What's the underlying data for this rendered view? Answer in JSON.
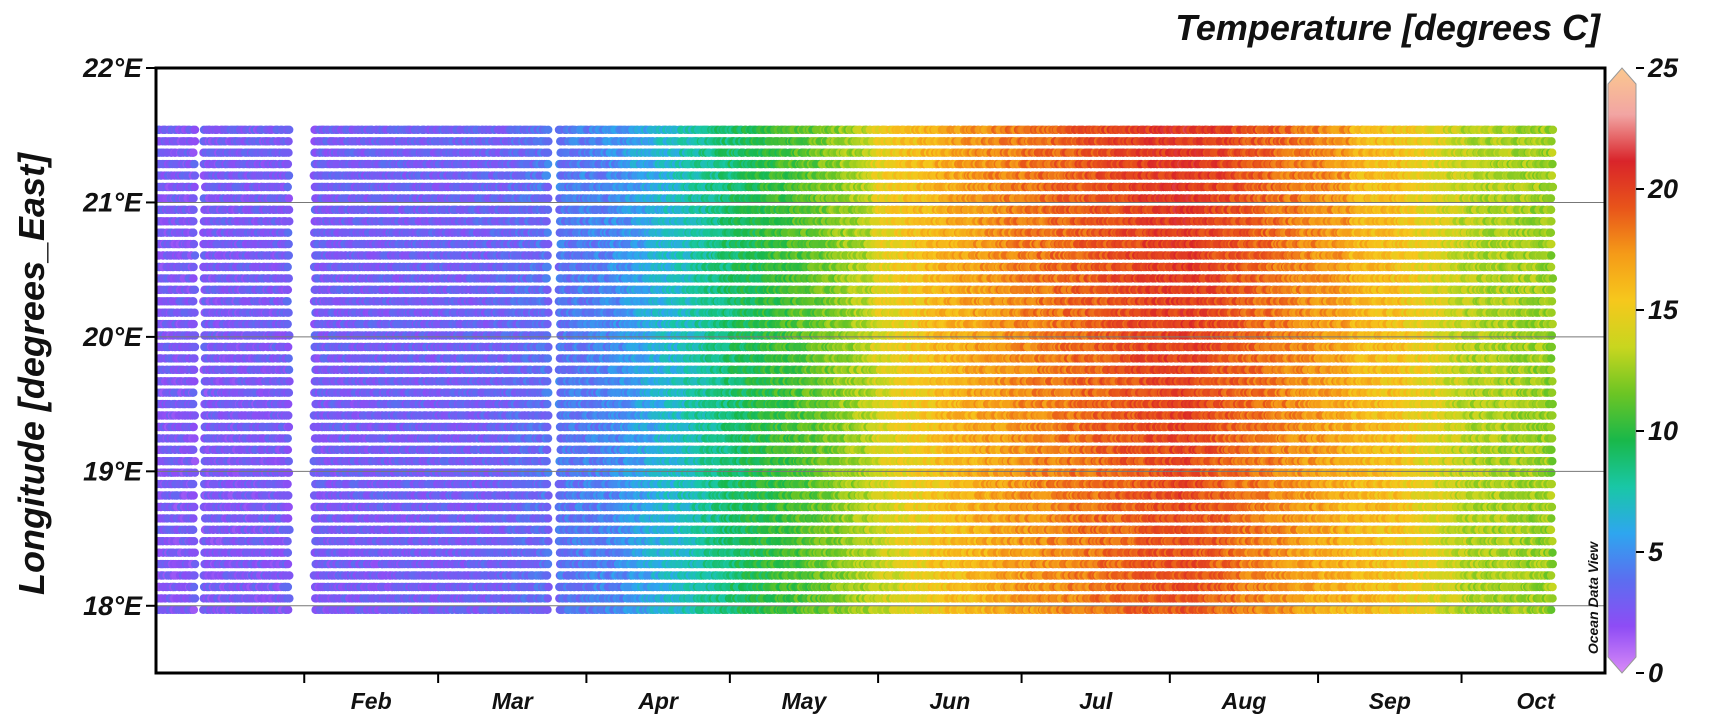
{
  "chart_data": {
    "type": "scatter",
    "title": "Temperature [degrees C]",
    "xlabel": "",
    "ylabel": "Longitude [degrees_East]",
    "x_tick_labels": [
      "Feb",
      "Mar",
      "Apr",
      "May",
      "Jun",
      "Jul",
      "Aug",
      "Sep",
      "Oct"
    ],
    "x_tick_months": [
      2,
      3,
      4,
      5,
      6,
      7,
      8,
      9,
      10
    ],
    "xlim": [
      "2019-01-01",
      "2019-10-31"
    ],
    "y_tick_values": [
      18,
      19,
      20,
      21,
      22
    ],
    "y_tick_labels": [
      "18°E",
      "19°E",
      "20°E",
      "21°E",
      "22°E"
    ],
    "ylim": [
      17.5,
      22.0
    ],
    "grid": true,
    "colorbar": {
      "label": "Temperature [degrees C]",
      "range": [
        0,
        25
      ],
      "tick_values": [
        0,
        5,
        10,
        15,
        20,
        25
      ],
      "tick_labels": [
        "0",
        "5",
        "10",
        "15",
        "20",
        "25"
      ],
      "colors": [
        "#d98bf7",
        "#8e4cf5",
        "#5b6ef0",
        "#2ea6ef",
        "#19c7a6",
        "#19b84a",
        "#6cc524",
        "#c8d61f",
        "#f6c81c",
        "#f59b18",
        "#e8541a",
        "#d9242a",
        "#f2a5a3",
        "#fbc88f"
      ]
    },
    "watermark": "Ocean Data View",
    "series": [
      {
        "name": "",
        "date_start": "2019-01-01",
        "date_end": "2019-10-20",
        "lon_min": 17.97,
        "lon_max": 21.58,
        "temperature_range": [
          2,
          22
        ]
      }
    ]
  }
}
